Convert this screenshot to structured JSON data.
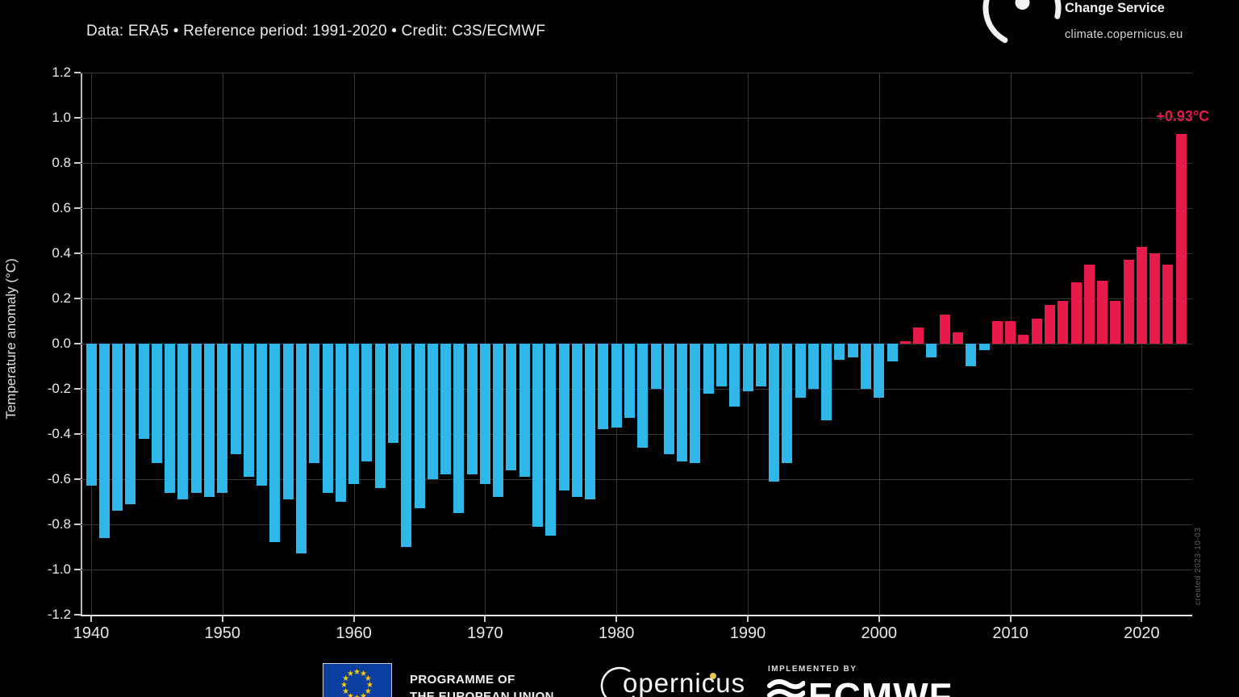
{
  "header": {
    "subtitle": "Data: ERA5 • Reference period: 1991-2020 • Credit: C3S/ECMWF",
    "logo": {
      "service_line": "Change Service",
      "website": "climate.copernicus.eu"
    }
  },
  "chart_data": {
    "type": "bar",
    "title": "",
    "ylabel": "Temperature anomaly (°C)",
    "ylim": [
      -1.2,
      1.2
    ],
    "ytick_step": 0.2,
    "grid": true,
    "xticks": [
      1940,
      1950,
      1960,
      1970,
      1980,
      1990,
      2000,
      2010,
      2020
    ],
    "years": [
      1940,
      1941,
      1942,
      1943,
      1944,
      1945,
      1946,
      1947,
      1948,
      1949,
      1950,
      1951,
      1952,
      1953,
      1954,
      1955,
      1956,
      1957,
      1958,
      1959,
      1960,
      1961,
      1962,
      1963,
      1964,
      1965,
      1966,
      1967,
      1968,
      1969,
      1970,
      1971,
      1972,
      1973,
      1974,
      1975,
      1976,
      1977,
      1978,
      1979,
      1980,
      1981,
      1982,
      1983,
      1984,
      1985,
      1986,
      1987,
      1988,
      1989,
      1990,
      1991,
      1992,
      1993,
      1994,
      1995,
      1996,
      1997,
      1998,
      1999,
      2000,
      2001,
      2002,
      2003,
      2004,
      2005,
      2006,
      2007,
      2008,
      2009,
      2010,
      2011,
      2012,
      2013,
      2014,
      2015,
      2016,
      2017,
      2018,
      2019,
      2020,
      2021,
      2022,
      2023
    ],
    "values": [
      -0.63,
      -0.86,
      -0.74,
      -0.71,
      -0.42,
      -0.53,
      -0.66,
      -0.69,
      -0.66,
      -0.68,
      -0.66,
      -0.49,
      -0.59,
      -0.63,
      -0.88,
      -0.69,
      -0.93,
      -0.53,
      -0.66,
      -0.7,
      -0.62,
      -0.52,
      -0.64,
      -0.44,
      -0.9,
      -0.73,
      -0.6,
      -0.58,
      -0.75,
      -0.58,
      -0.62,
      -0.68,
      -0.56,
      -0.59,
      -0.81,
      -0.85,
      -0.65,
      -0.68,
      -0.69,
      -0.38,
      -0.37,
      -0.33,
      -0.46,
      -0.2,
      -0.49,
      -0.52,
      -0.53,
      -0.22,
      -0.19,
      -0.28,
      -0.21,
      -0.19,
      -0.61,
      -0.53,
      -0.24,
      -0.2,
      -0.34,
      -0.07,
      -0.06,
      -0.2,
      -0.24,
      -0.08,
      0.01,
      0.07,
      -0.06,
      0.13,
      0.05,
      -0.1,
      -0.03,
      0.1,
      0.1,
      0.04,
      0.11,
      0.17,
      0.19,
      0.27,
      0.35,
      0.28,
      0.19,
      0.37,
      0.43,
      0.4,
      0.35,
      0.93
    ],
    "annotation": {
      "text": "+0.93°C",
      "year": 2023,
      "value": 0.93
    },
    "colors": {
      "positive": "#e8194b",
      "negative": "#2fb7ea",
      "grid": "#383838",
      "axis": "#e6e6e6",
      "annotation": "#e8194b",
      "background": "#000000"
    }
  },
  "watermark": "created 2023-10-03",
  "footer": {
    "programme_line1": "PROGRAMME OF",
    "programme_line2": "THE EUROPEAN UNION",
    "copernicus_wordmark": "opernicus",
    "implemented_by": "IMPLEMENTED BY",
    "ecmwf": "ECMWF"
  }
}
